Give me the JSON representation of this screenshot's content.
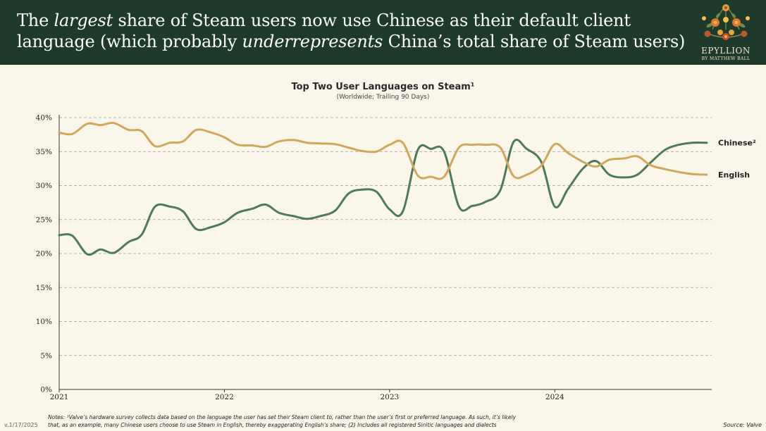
{
  "header": {
    "headline_pre": "The ",
    "headline_em1": "largest",
    "headline_mid": " share of Steam users now use Chinese as their default client language (which probably ",
    "headline_em2": "underrepresents",
    "headline_post": " China’s total share of Steam users)",
    "background_color": "#1e3a2b"
  },
  "logo": {
    "name": "EPYLLION",
    "sub": "BY MATTHEW BALL",
    "icon": "floral-wreath-icon"
  },
  "chart_data": {
    "type": "line",
    "title": "Top Two User Languages on Steam¹",
    "subtitle": "(Worldwide; Trailing 90 Days)",
    "xlabel": "",
    "ylabel": "",
    "ylim": [
      0,
      40
    ],
    "xlim": [
      2021.0,
      2024.95
    ],
    "yticks": [
      "0%",
      "5%",
      "10%",
      "15%",
      "20%",
      "25%",
      "30%",
      "35%",
      "40%"
    ],
    "ytick_values": [
      0,
      5,
      10,
      15,
      20,
      25,
      30,
      35,
      40
    ],
    "xticks": [
      "2021",
      "2022",
      "2023",
      "2024"
    ],
    "xtick_values": [
      2021,
      2022,
      2023,
      2024
    ],
    "grid": true,
    "series": [
      {
        "name": "Chinese",
        "label": "Chinese²",
        "color": "#4f7a5a",
        "x": [
          2021.0,
          2021.08,
          2021.17,
          2021.25,
          2021.33,
          2021.42,
          2021.5,
          2021.58,
          2021.67,
          2021.75,
          2021.83,
          2021.92,
          2022.0,
          2022.08,
          2022.17,
          2022.25,
          2022.33,
          2022.42,
          2022.5,
          2022.58,
          2022.67,
          2022.75,
          2022.83,
          2022.92,
          2023.0,
          2023.08,
          2023.17,
          2023.25,
          2023.33,
          2023.42,
          2023.5,
          2023.58,
          2023.67,
          2023.75,
          2023.83,
          2023.92,
          2024.0,
          2024.08,
          2024.17,
          2024.25,
          2024.33,
          2024.42,
          2024.5,
          2024.58,
          2024.67,
          2024.75,
          2024.83,
          2024.92
        ],
        "values": [
          22.7,
          22.6,
          19.9,
          20.6,
          20.1,
          21.7,
          22.8,
          26.9,
          26.9,
          26.2,
          23.6,
          23.9,
          24.6,
          26.0,
          26.6,
          27.2,
          26.0,
          25.5,
          25.1,
          25.5,
          26.3,
          28.8,
          29.4,
          29.1,
          26.5,
          26.2,
          35.2,
          35.4,
          35.0,
          26.9,
          27.0,
          27.6,
          29.3,
          36.4,
          35.4,
          33.4,
          26.9,
          29.5,
          32.5,
          33.6,
          31.6,
          31.2,
          31.6,
          33.4,
          35.3,
          36.0,
          36.3,
          36.3
        ]
      },
      {
        "name": "English",
        "label": "English",
        "color": "#d1a75c",
        "x": [
          2021.0,
          2021.08,
          2021.17,
          2021.25,
          2021.33,
          2021.42,
          2021.5,
          2021.58,
          2021.67,
          2021.75,
          2021.83,
          2021.92,
          2022.0,
          2022.08,
          2022.17,
          2022.25,
          2022.33,
          2022.42,
          2022.5,
          2022.58,
          2022.67,
          2022.75,
          2022.83,
          2022.92,
          2023.0,
          2023.08,
          2023.17,
          2023.25,
          2023.33,
          2023.42,
          2023.5,
          2023.58,
          2023.67,
          2023.75,
          2023.83,
          2023.92,
          2024.0,
          2024.08,
          2024.17,
          2024.25,
          2024.33,
          2024.42,
          2024.5,
          2024.58,
          2024.67,
          2024.75,
          2024.83,
          2024.92
        ],
        "values": [
          37.8,
          37.6,
          39.1,
          38.9,
          39.2,
          38.2,
          38.0,
          35.8,
          36.3,
          36.5,
          38.2,
          37.8,
          37.1,
          36.0,
          35.9,
          35.7,
          36.5,
          36.7,
          36.3,
          36.2,
          36.1,
          35.6,
          35.1,
          35.0,
          36.0,
          36.3,
          31.5,
          31.3,
          31.3,
          35.6,
          36.0,
          36.0,
          35.6,
          31.4,
          31.6,
          33.0,
          36.1,
          34.8,
          33.5,
          32.8,
          33.8,
          34.0,
          34.3,
          33.0,
          32.4,
          32.0,
          31.7,
          31.6
        ]
      }
    ]
  },
  "footer": {
    "notes_line1": "Notes: ¹Valve’s hardware survey collects data based on the language the user has set their Steam client to, rather than the user’s first or preferred language. As such, it’s likely",
    "notes_line2": "that, as an example, many Chinese users choose to use Steam in English, thereby exaggerating English’s share; (2) Includes all registered Sinitic languages and dialects",
    "version": "v.1/17/2025",
    "source": "Source: Valve"
  }
}
